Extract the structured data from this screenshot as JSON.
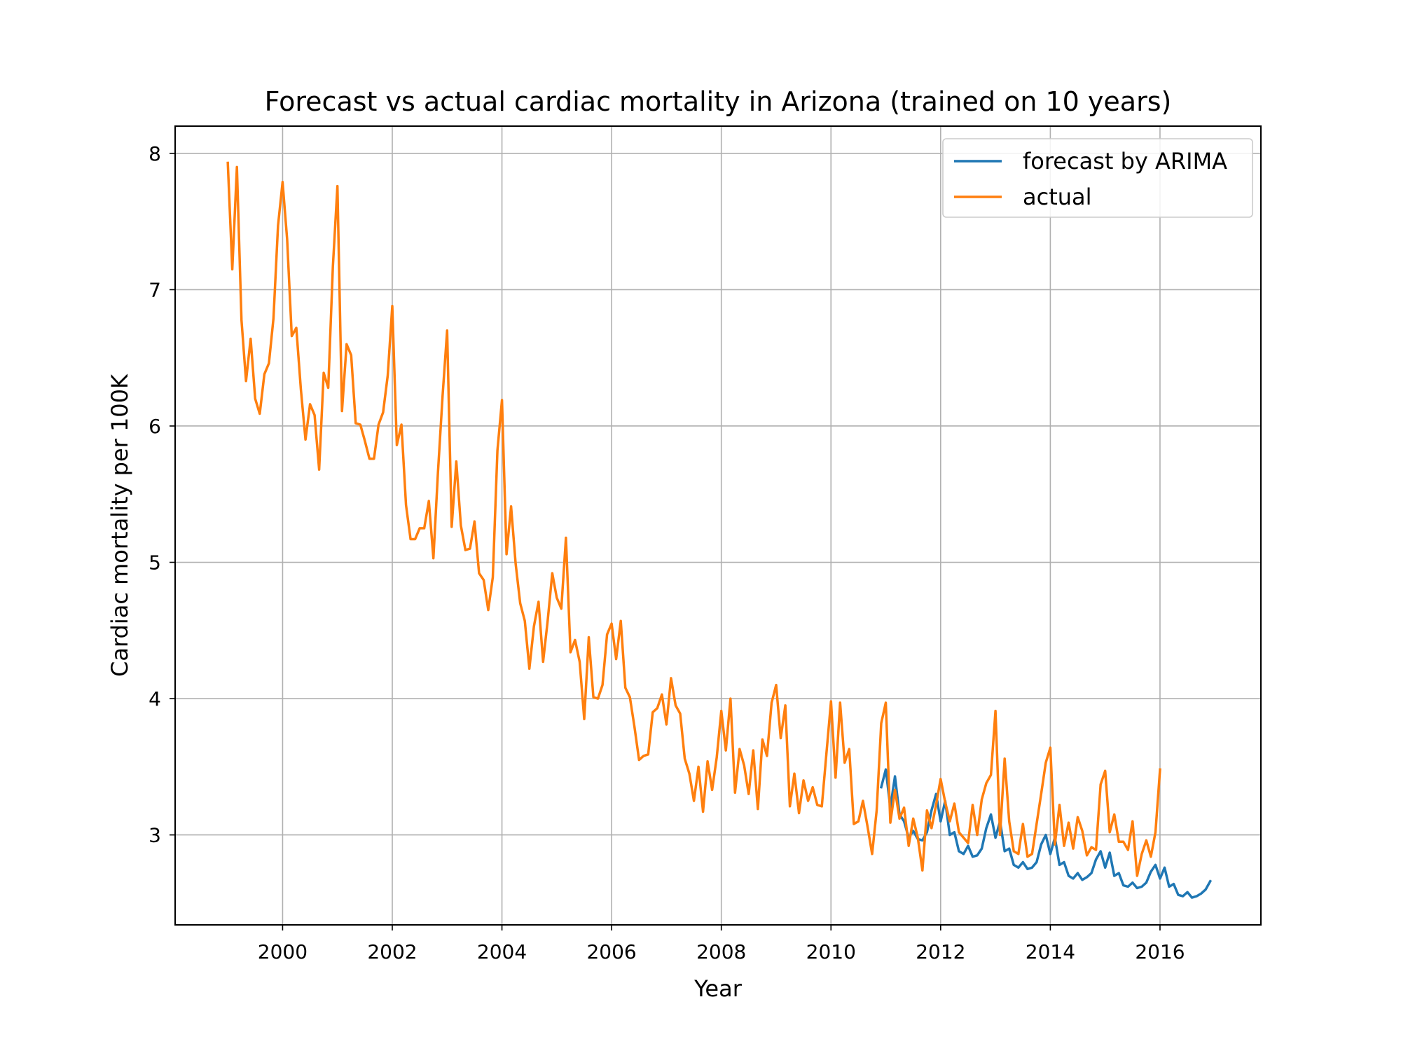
{
  "chart_data": {
    "type": "line",
    "title": "Forecast vs actual cardiac mortality in Arizona (trained on 10 years)",
    "xlabel": "Year",
    "ylabel": "Cardiac mortality per 100K",
    "xlim": [
      1998.04,
      2017.84
    ],
    "ylim": [
      2.34,
      8.2
    ],
    "xticks": [
      2000,
      2002,
      2004,
      2006,
      2008,
      2010,
      2012,
      2014,
      2016
    ],
    "yticks": [
      3,
      4,
      5,
      6,
      7,
      8
    ],
    "xtick_labels": [
      "2000",
      "2002",
      "2004",
      "2006",
      "2008",
      "2010",
      "2012",
      "2014",
      "2016"
    ],
    "ytick_labels": [
      "3",
      "4",
      "5",
      "6",
      "7",
      "8"
    ],
    "grid": true,
    "legend_position": "top-right",
    "series": [
      {
        "name": "forecast by ARIMA",
        "color": "#1f77b4",
        "x": [
          2010.917,
          2011.0,
          2011.083,
          2011.167,
          2011.25,
          2011.333,
          2011.417,
          2011.5,
          2011.583,
          2011.667,
          2011.75,
          2011.833,
          2011.917,
          2012.0,
          2012.083,
          2012.167,
          2012.25,
          2012.333,
          2012.417,
          2012.5,
          2012.583,
          2012.667,
          2012.75,
          2012.833,
          2012.917,
          2013.0,
          2013.083,
          2013.167,
          2013.25,
          2013.333,
          2013.417,
          2013.5,
          2013.583,
          2013.667,
          2013.75,
          2013.833,
          2013.917,
          2014.0,
          2014.083,
          2014.167,
          2014.25,
          2014.333,
          2014.417,
          2014.5,
          2014.583,
          2014.667,
          2014.75,
          2014.833,
          2014.917,
          2015.0,
          2015.083,
          2015.167,
          2015.25,
          2015.333,
          2015.417,
          2015.5,
          2015.583,
          2015.667,
          2015.75,
          2015.833,
          2015.917,
          2016.0,
          2016.083,
          2016.167,
          2016.25,
          2016.333,
          2016.417,
          2016.5,
          2016.583,
          2016.667,
          2016.75,
          2016.833,
          2016.917
        ],
        "y": [
          3.35,
          3.48,
          3.2,
          3.43,
          3.15,
          3.1,
          2.98,
          3.03,
          2.97,
          2.96,
          3.02,
          3.18,
          3.3,
          3.1,
          3.25,
          3.0,
          3.02,
          2.88,
          2.86,
          2.92,
          2.84,
          2.85,
          2.9,
          3.05,
          3.15,
          2.98,
          3.1,
          2.88,
          2.9,
          2.78,
          2.76,
          2.8,
          2.75,
          2.76,
          2.8,
          2.93,
          3.0,
          2.86,
          2.98,
          2.78,
          2.8,
          2.7,
          2.68,
          2.72,
          2.67,
          2.69,
          2.72,
          2.82,
          2.88,
          2.76,
          2.87,
          2.7,
          2.72,
          2.63,
          2.62,
          2.65,
          2.61,
          2.62,
          2.65,
          2.73,
          2.78,
          2.68,
          2.76,
          2.62,
          2.64,
          2.56,
          2.55,
          2.58,
          2.54,
          2.55,
          2.57,
          2.6,
          2.66
        ]
      },
      {
        "name": "actual",
        "color": "#ff7f0e",
        "x": [
          1999.0,
          1999.083,
          1999.167,
          1999.25,
          1999.333,
          1999.417,
          1999.5,
          1999.583,
          1999.667,
          1999.75,
          1999.833,
          1999.917,
          2000.0,
          2000.083,
          2000.167,
          2000.25,
          2000.333,
          2000.417,
          2000.5,
          2000.583,
          2000.667,
          2000.75,
          2000.833,
          2000.917,
          2001.0,
          2001.083,
          2001.167,
          2001.25,
          2001.333,
          2001.417,
          2001.5,
          2001.583,
          2001.667,
          2001.75,
          2001.833,
          2001.917,
          2002.0,
          2002.083,
          2002.167,
          2002.25,
          2002.333,
          2002.417,
          2002.5,
          2002.583,
          2002.667,
          2002.75,
          2002.833,
          2002.917,
          2003.0,
          2003.083,
          2003.167,
          2003.25,
          2003.333,
          2003.417,
          2003.5,
          2003.583,
          2003.667,
          2003.75,
          2003.833,
          2003.917,
          2004.0,
          2004.083,
          2004.167,
          2004.25,
          2004.333,
          2004.417,
          2004.5,
          2004.583,
          2004.667,
          2004.75,
          2004.833,
          2004.917,
          2005.0,
          2005.083,
          2005.167,
          2005.25,
          2005.333,
          2005.417,
          2005.5,
          2005.583,
          2005.667,
          2005.75,
          2005.833,
          2005.917,
          2006.0,
          2006.083,
          2006.167,
          2006.25,
          2006.333,
          2006.417,
          2006.5,
          2006.583,
          2006.667,
          2006.75,
          2006.833,
          2006.917,
          2007.0,
          2007.083,
          2007.167,
          2007.25,
          2007.333,
          2007.417,
          2007.5,
          2007.583,
          2007.667,
          2007.75,
          2007.833,
          2007.917,
          2008.0,
          2008.083,
          2008.167,
          2008.25,
          2008.333,
          2008.417,
          2008.5,
          2008.583,
          2008.667,
          2008.75,
          2008.833,
          2008.917,
          2009.0,
          2009.083,
          2009.167,
          2009.25,
          2009.333,
          2009.417,
          2009.5,
          2009.583,
          2009.667,
          2009.75,
          2009.833,
          2009.917,
          2010.0,
          2010.083,
          2010.167,
          2010.25,
          2010.333,
          2010.417,
          2010.5,
          2010.583,
          2010.667,
          2010.75,
          2010.833,
          2010.917,
          2011.0,
          2011.083,
          2011.167,
          2011.25,
          2011.333,
          2011.417,
          2011.5,
          2011.583,
          2011.667,
          2011.75,
          2011.833,
          2011.917,
          2012.0,
          2012.083,
          2012.167,
          2012.25,
          2012.333,
          2012.417,
          2012.5,
          2012.583,
          2012.667,
          2012.75,
          2012.833,
          2012.917,
          2013.0,
          2013.083,
          2013.167,
          2013.25,
          2013.333,
          2013.417,
          2013.5,
          2013.583,
          2013.667,
          2013.75,
          2013.833,
          2013.917,
          2014.0,
          2014.083,
          2014.167,
          2014.25,
          2014.333,
          2014.417,
          2014.5,
          2014.583,
          2014.667,
          2014.75,
          2014.833,
          2014.917,
          2015.0,
          2015.083,
          2015.167,
          2015.25,
          2015.333,
          2015.417,
          2015.5,
          2015.583,
          2015.667,
          2015.75,
          2015.833,
          2015.917,
          2016.0
        ],
        "y": [
          7.93,
          7.15,
          7.9,
          6.78,
          6.33,
          6.64,
          6.2,
          6.09,
          6.38,
          6.46,
          6.79,
          7.47,
          7.79,
          7.37,
          6.66,
          6.72,
          6.27,
          5.9,
          6.16,
          6.08,
          5.68,
          6.39,
          6.28,
          7.17,
          7.76,
          6.11,
          6.6,
          6.52,
          6.02,
          6.01,
          5.89,
          5.76,
          5.76,
          6.01,
          6.1,
          6.37,
          6.88,
          5.86,
          6.01,
          5.42,
          5.17,
          5.17,
          5.25,
          5.25,
          5.45,
          5.03,
          5.66,
          6.22,
          6.7,
          5.26,
          5.74,
          5.27,
          5.09,
          5.1,
          5.3,
          4.92,
          4.87,
          4.65,
          4.89,
          5.82,
          6.19,
          5.06,
          5.41,
          4.99,
          4.7,
          4.57,
          4.22,
          4.53,
          4.71,
          4.27,
          4.57,
          4.92,
          4.74,
          4.66,
          5.18,
          4.34,
          4.43,
          4.27,
          3.85,
          4.45,
          4.01,
          4.0,
          4.1,
          4.47,
          4.55,
          4.29,
          4.57,
          4.08,
          4.01,
          3.79,
          3.55,
          3.58,
          3.59,
          3.9,
          3.93,
          4.03,
          3.81,
          4.15,
          3.95,
          3.89,
          3.56,
          3.45,
          3.25,
          3.5,
          3.17,
          3.54,
          3.33,
          3.57,
          3.91,
          3.62,
          4.0,
          3.31,
          3.63,
          3.51,
          3.3,
          3.62,
          3.19,
          3.7,
          3.58,
          3.97,
          4.1,
          3.71,
          3.95,
          3.21,
          3.45,
          3.16,
          3.4,
          3.25,
          3.35,
          3.22,
          3.21,
          3.6,
          3.98,
          3.42,
          3.97,
          3.53,
          3.63,
          3.08,
          3.1,
          3.25,
          3.06,
          2.86,
          3.18,
          3.82,
          3.97,
          3.09,
          3.33,
          3.12,
          3.2,
          2.92,
          3.12,
          2.98,
          2.74,
          3.18,
          3.05,
          3.22,
          3.41,
          3.24,
          3.1,
          3.23,
          3.02,
          2.98,
          2.94,
          3.22,
          3.0,
          3.26,
          3.38,
          3.44,
          3.91,
          3.0,
          3.56,
          3.1,
          2.88,
          2.86,
          3.08,
          2.84,
          2.86,
          3.08,
          3.3,
          3.53,
          3.64,
          2.93,
          3.22,
          2.92,
          3.09,
          2.9,
          3.13,
          3.03,
          2.85,
          2.91,
          2.89,
          3.37,
          3.47,
          3.02,
          3.15,
          2.95,
          2.95,
          2.89,
          3.1,
          2.7,
          2.86,
          2.96,
          2.84,
          3.02,
          3.48
        ]
      }
    ]
  }
}
